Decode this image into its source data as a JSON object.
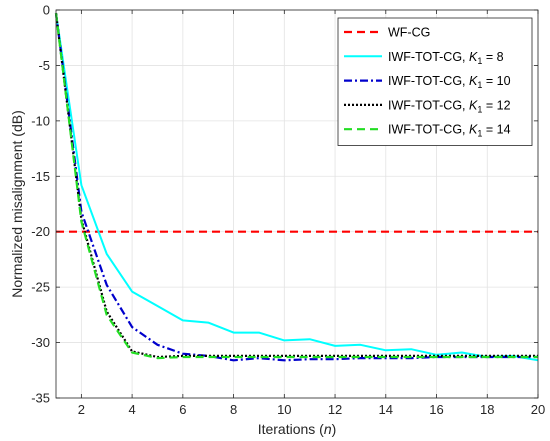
{
  "chart_data": {
    "type": "line",
    "title": "",
    "xlabel": "Iterations (n)",
    "xlabel_main": "Iterations (",
    "xlabel_var": "n",
    "xlabel_close": ")",
    "ylabel": "Normalized misalignment (dB)",
    "xlim": [
      1,
      20
    ],
    "ylim": [
      -35,
      0
    ],
    "xticks": [
      2,
      4,
      6,
      8,
      10,
      12,
      14,
      16,
      18,
      20
    ],
    "yticks": [
      0,
      -5,
      -10,
      -15,
      -20,
      -25,
      -30,
      -35
    ],
    "grid": true,
    "legend_position": "top-right",
    "x": [
      1,
      2,
      3,
      4,
      5,
      6,
      7,
      8,
      9,
      10,
      11,
      12,
      13,
      14,
      15,
      16,
      17,
      18,
      19,
      20
    ],
    "series": [
      {
        "name": "WF-CG",
        "legend_text": "WF-CG",
        "color": "#ff0000",
        "style": "dashed",
        "values": [
          -20,
          -20,
          -20,
          -20,
          -20,
          -20,
          -20,
          -20,
          -20,
          -20,
          -20,
          -20,
          -20,
          -20,
          -20,
          -20,
          -20,
          -20,
          -20,
          -20
        ]
      },
      {
        "name": "IWF-TOT-CG, K1 = 8",
        "legend_text": "IWF-TOT-CG, ",
        "legend_var": "K",
        "legend_sub": "1",
        "legend_rest": " = 8",
        "color": "#00ffff",
        "style": "solid",
        "values": [
          -0.3,
          -15.8,
          -22.0,
          -25.4,
          -26.7,
          -28.0,
          -28.2,
          -29.1,
          -29.1,
          -29.8,
          -29.7,
          -30.3,
          -30.2,
          -30.7,
          -30.6,
          -31.1,
          -30.9,
          -31.3,
          -31.2,
          -31.6
        ]
      },
      {
        "name": "IWF-TOT-CG, K1 = 10",
        "legend_text": "IWF-TOT-CG, ",
        "legend_var": "K",
        "legend_sub": "1",
        "legend_rest": " = 10",
        "color": "#0000cc",
        "style": "dashdot",
        "values": [
          -0.3,
          -18.2,
          -24.8,
          -28.6,
          -30.2,
          -31.0,
          -31.2,
          -31.6,
          -31.4,
          -31.6,
          -31.5,
          -31.5,
          -31.4,
          -31.4,
          -31.4,
          -31.3,
          -31.3,
          -31.3,
          -31.3,
          -31.3
        ]
      },
      {
        "name": "IWF-TOT-CG, K1 = 12",
        "legend_text": "IWF-TOT-CG, ",
        "legend_var": "K",
        "legend_sub": "1",
        "legend_rest": " = 12",
        "color": "#000000",
        "style": "dotted",
        "values": [
          -0.3,
          -18.9,
          -27.2,
          -30.8,
          -31.3,
          -31.2,
          -31.2,
          -31.2,
          -31.2,
          -31.2,
          -31.2,
          -31.2,
          -31.2,
          -31.2,
          -31.2,
          -31.2,
          -31.2,
          -31.2,
          -31.2,
          -31.2
        ]
      },
      {
        "name": "IWF-TOT-CG, K1 = 14",
        "legend_text": "IWF-TOT-CG, ",
        "legend_var": "K",
        "legend_sub": "1",
        "legend_rest": " = 14",
        "color": "#22dd22",
        "style": "dashed",
        "values": [
          -0.3,
          -19.1,
          -27.5,
          -30.9,
          -31.4,
          -31.3,
          -31.3,
          -31.3,
          -31.3,
          -31.3,
          -31.3,
          -31.3,
          -31.3,
          -31.3,
          -31.3,
          -31.3,
          -31.3,
          -31.3,
          -31.3,
          -31.3
        ]
      }
    ]
  }
}
